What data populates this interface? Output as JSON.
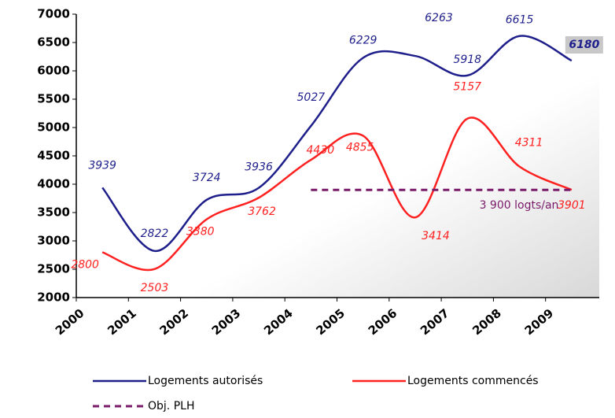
{
  "chart_data": {
    "type": "line",
    "categories": [
      "2000",
      "2001",
      "2002",
      "2003",
      "2004",
      "2005",
      "2006",
      "2007",
      "2008",
      "2009"
    ],
    "series": [
      {
        "name": "Logements autorisés",
        "color": "#1f1f8c",
        "values": [
          3939,
          2822,
          3724,
          3936,
          5027,
          6229,
          6263,
          5918,
          6615,
          6180
        ]
      },
      {
        "name": "Logements commencés",
        "color": "#ff2020",
        "values": [
          2800,
          2503,
          3380,
          3762,
          4430,
          4855,
          3414,
          5157,
          4311,
          3901
        ]
      },
      {
        "name": "Obj. PLH",
        "color": "#7a1a6a",
        "values": [
          null,
          null,
          null,
          null,
          3900,
          3900,
          3900,
          3900,
          3900,
          3900
        ]
      }
    ],
    "annotations": [
      "3 900 logts/an"
    ],
    "ylim": [
      2000,
      7000
    ],
    "yticks": [
      2000,
      2500,
      3000,
      3500,
      4000,
      4500,
      5000,
      5500,
      6000,
      6500,
      7000
    ]
  }
}
